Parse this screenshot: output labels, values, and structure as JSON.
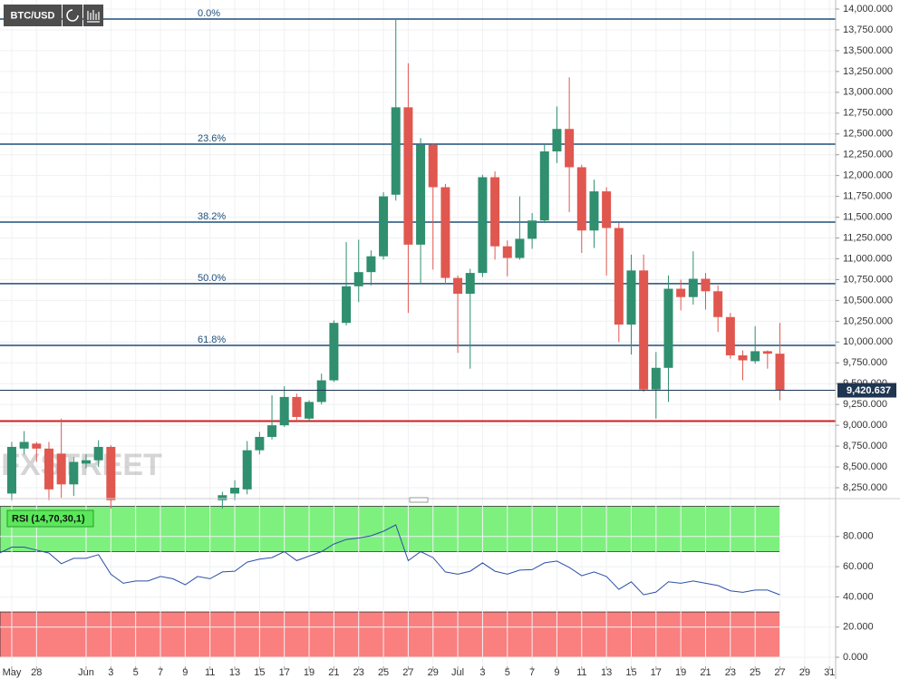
{
  "toolbar": {
    "symbol": "BTC/USD"
  },
  "watermark": "FXSTREET",
  "chart_data": [
    {
      "type": "candlestick",
      "up_color": "#2f8f6f",
      "down_color": "#e0574f",
      "open": [
        null,
        8180,
        8720,
        8780,
        8720,
        8660,
        8290,
        8540,
        8580,
        8740,
        null,
        null,
        null,
        null,
        null,
        null,
        null,
        null,
        8100,
        8180,
        8230,
        8700,
        8860,
        9000,
        9340,
        9080,
        9280,
        9540,
        10230,
        10670,
        10840,
        11030,
        11770,
        12820,
        11170,
        12370,
        11860,
        10770,
        10580,
        10830,
        11980,
        11150,
        11010,
        11240,
        11460,
        12290,
        12560,
        12100,
        11340,
        11810,
        11370,
        10210,
        10860,
        9430,
        9690,
        10640,
        10540,
        10760,
        10610,
        10300,
        9840,
        9770,
        9890,
        9860,
        null,
        null,
        null,
        null
      ],
      "high": [
        null,
        8800,
        8930,
        8800,
        8800,
        9080,
        8620,
        8650,
        8820,
        8760,
        null,
        null,
        null,
        null,
        null,
        null,
        null,
        null,
        8200,
        8340,
        8810,
        8920,
        9360,
        9470,
        9380,
        9300,
        9620,
        10260,
        11200,
        11230,
        11100,
        11800,
        13870,
        13350,
        12450,
        12380,
        11900,
        10800,
        10880,
        12010,
        12050,
        11220,
        11750,
        11550,
        12380,
        12830,
        13180,
        12130,
        11950,
        11860,
        11430,
        11050,
        11050,
        9880,
        10800,
        10750,
        11090,
        10830,
        10680,
        10350,
        9900,
        10190,
        9900,
        10230,
        null,
        null,
        null,
        null
      ],
      "low": [
        null,
        8100,
        8650,
        8560,
        8100,
        8130,
        8150,
        8480,
        8500,
        8000,
        null,
        null,
        null,
        null,
        null,
        null,
        null,
        null,
        8000,
        8100,
        8170,
        8650,
        8830,
        8980,
        9050,
        9050,
        9250,
        9520,
        10200,
        10480,
        10680,
        10990,
        11700,
        10350,
        10700,
        10870,
        10700,
        9870,
        9680,
        10780,
        10990,
        10790,
        10990,
        11120,
        11430,
        12150,
        11560,
        11070,
        11130,
        10800,
        10000,
        9850,
        9400,
        9080,
        9280,
        10380,
        10450,
        10390,
        10120,
        9800,
        9540,
        9740,
        9680,
        9300,
        null,
        null,
        null,
        null
      ],
      "close": [
        null,
        8740,
        8800,
        8720,
        8230,
        8290,
        8560,
        8580,
        8740,
        8100,
        null,
        null,
        null,
        null,
        null,
        null,
        null,
        null,
        8160,
        8250,
        8700,
        8860,
        9000,
        9340,
        9100,
        9280,
        9540,
        10230,
        10670,
        10840,
        11030,
        11750,
        12820,
        11170,
        12370,
        11860,
        10770,
        10580,
        10830,
        11980,
        11150,
        11010,
        11240,
        11460,
        12290,
        12560,
        12100,
        11340,
        11810,
        11370,
        10210,
        10860,
        9430,
        9690,
        10640,
        10540,
        10760,
        10610,
        10300,
        9840,
        9780,
        9890,
        9860,
        9420.637,
        null,
        null,
        null,
        null
      ],
      "ylim": [
        8141,
        14109
      ],
      "yticks": [
        {
          "value": 8250,
          "label": "8,250.000"
        },
        {
          "value": 8500,
          "label": "8,500.000"
        },
        {
          "value": 8750,
          "label": "8,750.000"
        },
        {
          "value": 9000,
          "label": "9,000.000"
        },
        {
          "value": 9250,
          "label": "9,250.000"
        },
        {
          "value": 9500,
          "label": "9,500.000"
        },
        {
          "value": 9750,
          "label": "9,750.000"
        },
        {
          "value": 10000,
          "label": "10,000.000"
        },
        {
          "value": 10250,
          "label": "10,250.000"
        },
        {
          "value": 10500,
          "label": "10,500.000"
        },
        {
          "value": 10750,
          "label": "10,750.000"
        },
        {
          "value": 11000,
          "label": "11,000.000"
        },
        {
          "value": 11250,
          "label": "11,250.000"
        },
        {
          "value": 11500,
          "label": "11,500.000"
        },
        {
          "value": 11750,
          "label": "11,750.000"
        },
        {
          "value": 12000,
          "label": "12,000.000"
        },
        {
          "value": 12250,
          "label": "12,250.000"
        },
        {
          "value": 12500,
          "label": "12,500.000"
        },
        {
          "value": 12750,
          "label": "12,750.000"
        },
        {
          "value": 13000,
          "label": "13,000.000"
        },
        {
          "value": 13250,
          "label": "13,250.000"
        },
        {
          "value": 13500,
          "label": "13,500.000"
        },
        {
          "value": 13750,
          "label": "13,750.000"
        },
        {
          "value": 14000,
          "label": "14,000.000"
        }
      ],
      "grid": true,
      "last_price": {
        "value": 9420.637,
        "label": "9,420.637",
        "color": "#1f3550"
      },
      "fib_color": "#1f4e79",
      "fib_levels": [
        {
          "label": "0.0%",
          "price": 13880
        },
        {
          "label": "23.6%",
          "price": 12378
        },
        {
          "label": "38.2%",
          "price": 11441
        },
        {
          "label": "50.0%",
          "price": 10701
        },
        {
          "label": "61.8%",
          "price": 9960
        }
      ],
      "horizontal_line": {
        "value": 9050,
        "color": "#cc1f1f"
      }
    },
    {
      "type": "line",
      "title": "RSI (14,70,30,1)",
      "color": "#2b4fa8",
      "categories": [
        null,
        "May",
        null,
        "28",
        null,
        null,
        null,
        "Jun",
        null,
        "3",
        null,
        "5",
        null,
        "7",
        null,
        "9",
        null,
        "11",
        null,
        "13",
        null,
        "15",
        null,
        "17",
        null,
        "19",
        null,
        "21",
        null,
        "23",
        null,
        "25",
        null,
        "27",
        null,
        "29",
        null,
        "Jul",
        null,
        "3",
        null,
        "5",
        null,
        "7",
        null,
        "9",
        null,
        "11",
        null,
        "13",
        null,
        "15",
        null,
        "17",
        null,
        "19",
        null,
        "21",
        null,
        "23",
        null,
        "25",
        null,
        "27",
        null,
        "29",
        null,
        "31"
      ],
      "values": [
        69,
        73,
        73,
        71,
        69,
        62,
        65.5,
        65.5,
        68,
        55,
        49,
        50.5,
        50.5,
        53.5,
        52,
        48,
        53.5,
        52,
        56.5,
        57,
        63,
        65,
        66,
        70,
        64,
        67,
        70,
        75,
        78,
        79,
        80.5,
        83.5,
        87.7,
        64,
        70,
        66,
        56.5,
        55,
        57,
        62.5,
        57,
        55,
        57.7,
        58,
        62.5,
        63.7,
        59.5,
        54,
        56.5,
        53.5,
        45,
        50,
        41.4,
        43.2,
        50,
        49,
        50.5,
        49,
        47.5,
        44,
        43,
        44.5,
        44.5,
        41.4,
        null,
        null,
        null,
        null
      ],
      "ylim": [
        -6,
        101.5
      ],
      "yticks": [
        {
          "value": 0,
          "label": "0.000"
        },
        {
          "value": 20,
          "label": "20.000"
        },
        {
          "value": 40,
          "label": "40.000"
        },
        {
          "value": 60,
          "label": "60.000"
        },
        {
          "value": 80,
          "label": "80.000"
        }
      ],
      "grid": true,
      "overbought": {
        "range": [
          70,
          100
        ],
        "color": "#7ef07e"
      },
      "oversold": {
        "range": [
          0,
          30
        ],
        "color": "#fa7f7f"
      }
    }
  ]
}
